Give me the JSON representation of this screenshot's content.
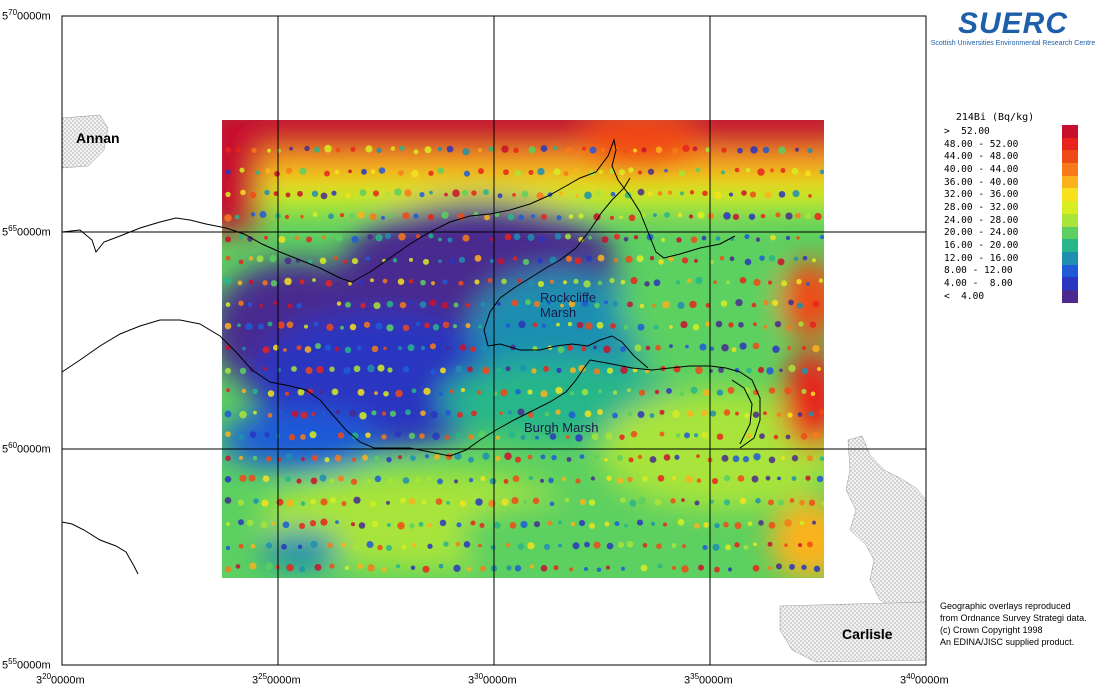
{
  "map": {
    "x_ticks": [
      {
        "major": "3",
        "sub": "20",
        "rest": "0000m"
      },
      {
        "major": "3",
        "sub": "25",
        "rest": "0000m"
      },
      {
        "major": "3",
        "sub": "30",
        "rest": "0000m"
      },
      {
        "major": "3",
        "sub": "35",
        "rest": "0000m"
      },
      {
        "major": "3",
        "sub": "40",
        "rest": "0000m"
      }
    ],
    "y_ticks": [
      {
        "major": "5",
        "sub": "70",
        "rest": "0000m"
      },
      {
        "major": "5",
        "sub": "65",
        "rest": "0000m"
      },
      {
        "major": "5",
        "sub": "60",
        "rest": "0000m"
      },
      {
        "major": "5",
        "sub": "55",
        "rest": "0000m"
      }
    ],
    "places": {
      "annan": "Annan",
      "carlisle": "Carlisle",
      "rockcliffe_line1": "Rockcliffe",
      "rockcliffe_line2": "Marsh",
      "burgh": "Burgh Marsh"
    }
  },
  "logo": {
    "text": "SUERC",
    "subtitle": "Scottish Universities Environmental Research Centre"
  },
  "legend": {
    "title": "214Bi (Bq/kg)",
    "items": [
      {
        "label": ">  52.00",
        "color": "#c8102e"
      },
      {
        "label": "48.00 - 52.00",
        "color": "#e8231c"
      },
      {
        "label": "44.00 - 48.00",
        "color": "#f04a18"
      },
      {
        "label": "40.00 - 44.00",
        "color": "#f77a1a"
      },
      {
        "label": "36.00 - 40.00",
        "color": "#fbb21d"
      },
      {
        "label": "32.00 - 36.00",
        "color": "#f7e21c"
      },
      {
        "label": "28.00 - 32.00",
        "color": "#d6ee22"
      },
      {
        "label": "24.00 - 28.00",
        "color": "#a8e43a"
      },
      {
        "label": "20.00 - 24.00",
        "color": "#5cd060"
      },
      {
        "label": "16.00 - 20.00",
        "color": "#27b68a"
      },
      {
        "label": "12.00 - 16.00",
        "color": "#1e8fb0"
      },
      {
        "label": "8.00 - 12.00",
        "color": "#1f5bd8"
      },
      {
        "label": "4.00 -  8.00",
        "color": "#2a35c0"
      },
      {
        "label": "<  4.00",
        "color": "#4a2a8e"
      }
    ]
  },
  "copyright": {
    "line1": "Geographic overlays reproduced",
    "line2": "from Ordnance Survey Strategi data.",
    "line3": "(c) Crown Copyright 1998",
    "line4": "An EDINA/JISC supplied product."
  },
  "colors": {
    "frame": "#000000",
    "urban_fill": "#e8e8e8",
    "coast": "#000000"
  }
}
